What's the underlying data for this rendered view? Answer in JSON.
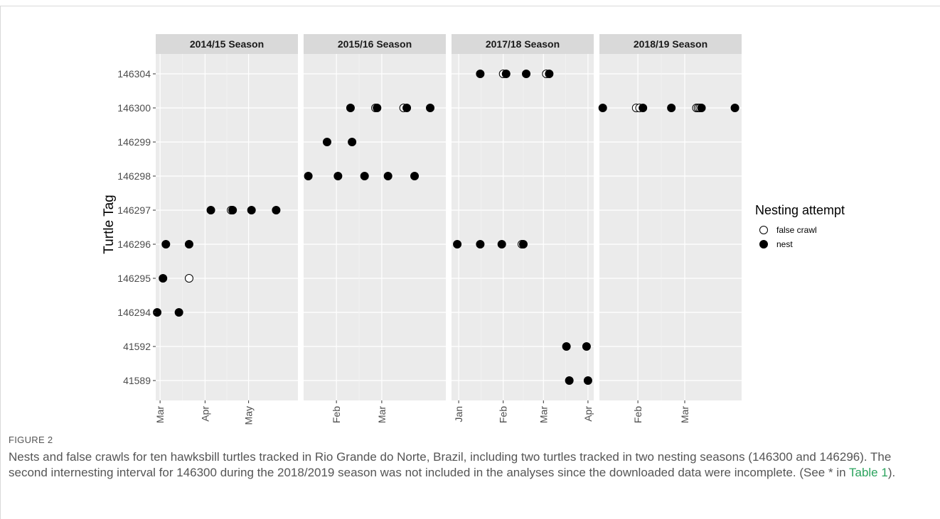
{
  "chart_data": {
    "type": "scatter",
    "ylabel": "Turtle Tag",
    "y_categories": [
      "41589",
      "41592",
      "146294",
      "146295",
      "146296",
      "146297",
      "146298",
      "146299",
      "146300",
      "146304"
    ],
    "legend": {
      "title": "Nesting  attempt",
      "placement": "right",
      "entries": [
        {
          "label": "false crawl",
          "marker": "open-circle"
        },
        {
          "label": "nest",
          "marker": "filled-circle"
        }
      ]
    },
    "grid": true,
    "panels": [
      {
        "title": "2014/15 Season",
        "xlim": [
          "2015-02-26",
          "2015-06-04"
        ],
        "ticks": [
          {
            "date": "2015-03-01",
            "label": "Mar"
          },
          {
            "date": "2015-04-01",
            "label": "Apr"
          },
          {
            "date": "2015-05-01",
            "label": "May"
          }
        ],
        "points": [
          {
            "date": "2015-02-27",
            "tag": "146294",
            "attempt": "nest"
          },
          {
            "date": "2015-03-14",
            "tag": "146294",
            "attempt": "nest"
          },
          {
            "date": "2015-03-03",
            "tag": "146295",
            "attempt": "nest"
          },
          {
            "date": "2015-03-21",
            "tag": "146295",
            "attempt": "false crawl"
          },
          {
            "date": "2015-03-05",
            "tag": "146296",
            "attempt": "nest"
          },
          {
            "date": "2015-03-21",
            "tag": "146296",
            "attempt": "nest"
          },
          {
            "date": "2015-04-05",
            "tag": "146297",
            "attempt": "nest"
          },
          {
            "date": "2015-04-19",
            "tag": "146297",
            "attempt": "false crawl"
          },
          {
            "date": "2015-04-20",
            "tag": "146297",
            "attempt": "nest"
          },
          {
            "date": "2015-05-03",
            "tag": "146297",
            "attempt": "nest"
          },
          {
            "date": "2015-05-20",
            "tag": "146297",
            "attempt": "nest"
          }
        ]
      },
      {
        "title": "2015/16 Season",
        "xlim": [
          "2016-01-11",
          "2016-04-11"
        ],
        "ticks": [
          {
            "date": "2016-02-01",
            "label": "Feb"
          },
          {
            "date": "2016-03-01",
            "label": "Mar"
          }
        ],
        "points": [
          {
            "date": "2016-01-14",
            "tag": "146298",
            "attempt": "nest"
          },
          {
            "date": "2016-02-02",
            "tag": "146298",
            "attempt": "nest"
          },
          {
            "date": "2016-02-19",
            "tag": "146298",
            "attempt": "nest"
          },
          {
            "date": "2016-03-05",
            "tag": "146298",
            "attempt": "nest"
          },
          {
            "date": "2016-03-22",
            "tag": "146298",
            "attempt": "nest"
          },
          {
            "date": "2016-01-26",
            "tag": "146299",
            "attempt": "nest"
          },
          {
            "date": "2016-02-11",
            "tag": "146299",
            "attempt": "nest"
          },
          {
            "date": "2016-02-10",
            "tag": "146300",
            "attempt": "nest"
          },
          {
            "date": "2016-02-26",
            "tag": "146300",
            "attempt": "false crawl"
          },
          {
            "date": "2016-02-27",
            "tag": "146300",
            "attempt": "nest"
          },
          {
            "date": "2016-03-15",
            "tag": "146300",
            "attempt": "false crawl"
          },
          {
            "date": "2016-03-17",
            "tag": "146300",
            "attempt": "nest"
          },
          {
            "date": "2016-04-01",
            "tag": "146300",
            "attempt": "nest"
          }
        ]
      },
      {
        "title": "2017/18 Season",
        "xlim": [
          "2017-12-27",
          "2018-04-05"
        ],
        "ticks": [
          {
            "date": "2018-01-01",
            "label": "Jan"
          },
          {
            "date": "2018-02-01",
            "label": "Feb"
          },
          {
            "date": "2018-03-01",
            "label": "Mar"
          },
          {
            "date": "2018-04-01",
            "label": "Apr"
          }
        ],
        "points": [
          {
            "date": "2018-01-16",
            "tag": "146304",
            "attempt": "nest"
          },
          {
            "date": "2018-02-01",
            "tag": "146304",
            "attempt": "false crawl"
          },
          {
            "date": "2018-02-03",
            "tag": "146304",
            "attempt": "nest"
          },
          {
            "date": "2018-02-17",
            "tag": "146304",
            "attempt": "nest"
          },
          {
            "date": "2018-03-03",
            "tag": "146304",
            "attempt": "false crawl"
          },
          {
            "date": "2018-03-05",
            "tag": "146304",
            "attempt": "nest"
          },
          {
            "date": "2017-12-31",
            "tag": "146296",
            "attempt": "nest"
          },
          {
            "date": "2018-01-16",
            "tag": "146296",
            "attempt": "nest"
          },
          {
            "date": "2018-01-31",
            "tag": "146296",
            "attempt": "nest"
          },
          {
            "date": "2018-02-14",
            "tag": "146296",
            "attempt": "false crawl"
          },
          {
            "date": "2018-02-15",
            "tag": "146296",
            "attempt": "nest"
          },
          {
            "date": "2018-03-17",
            "tag": "41592",
            "attempt": "nest"
          },
          {
            "date": "2018-03-31",
            "tag": "41592",
            "attempt": "nest"
          },
          {
            "date": "2018-03-19",
            "tag": "41589",
            "attempt": "nest"
          },
          {
            "date": "2018-04-01",
            "tag": "41589",
            "attempt": "nest"
          }
        ]
      },
      {
        "title": "2018/19 Season",
        "xlim": [
          "2019-01-09",
          "2019-04-04"
        ],
        "ticks": [
          {
            "date": "2019-02-01",
            "label": "Feb"
          },
          {
            "date": "2019-03-01",
            "label": "Mar"
          }
        ],
        "points": [
          {
            "date": "2019-01-11",
            "tag": "146300",
            "attempt": "nest"
          },
          {
            "date": "2019-01-31",
            "tag": "146300",
            "attempt": "false crawl"
          },
          {
            "date": "2019-02-02",
            "tag": "146300",
            "attempt": "false crawl"
          },
          {
            "date": "2019-02-04",
            "tag": "146300",
            "attempt": "nest"
          },
          {
            "date": "2019-02-21",
            "tag": "146300",
            "attempt": "nest"
          },
          {
            "date": "2019-03-08",
            "tag": "146300",
            "attempt": "false crawl"
          },
          {
            "date": "2019-03-09",
            "tag": "146300",
            "attempt": "false crawl"
          },
          {
            "date": "2019-03-10",
            "tag": "146300",
            "attempt": "false crawl"
          },
          {
            "date": "2019-03-11",
            "tag": "146300",
            "attempt": "nest"
          },
          {
            "date": "2019-03-31",
            "tag": "146300",
            "attempt": "nest"
          }
        ]
      }
    ]
  },
  "caption": {
    "label": "FIGURE 2",
    "text_before": "Nests and false crawls for ten hawksbill turtles tracked in Rio Grande do Norte, Brazil, including two turtles tracked in two nesting seasons (146300 and 146296). The second internesting interval for 146300 during the 2018/2019 season was not included in the analyses since the downloaded data were incomplete. (See * in ",
    "link_text": "Table 1",
    "text_after": ")."
  }
}
